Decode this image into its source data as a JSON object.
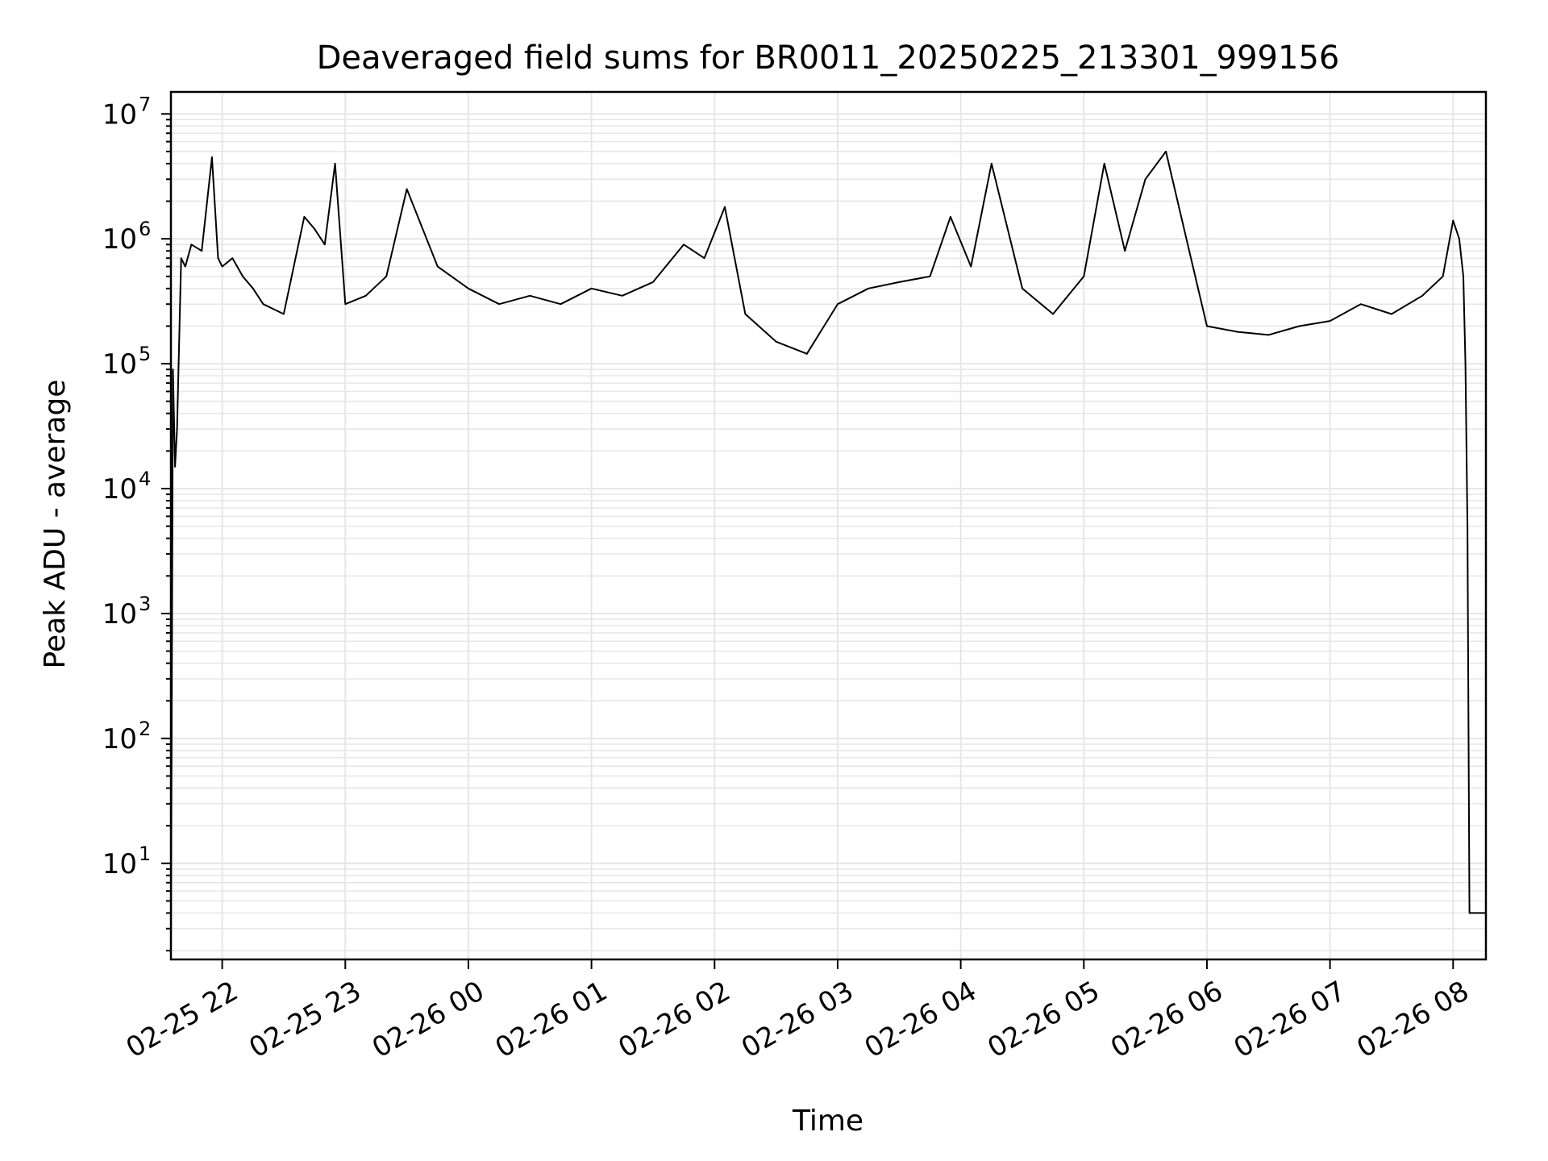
{
  "chart_data": {
    "type": "line",
    "title": "Deaveraged field sums for BR0011_20250225_213301_999156",
    "xlabel": "Time",
    "ylabel": "Peak ADU - average",
    "yscale": "log",
    "ylim": [
      1.7,
      15000000
    ],
    "xlim": [
      "02-25 21:35",
      "02-26 08:16"
    ],
    "grid": true,
    "line_color": "#000000",
    "x_ticks": [
      "02-25 22",
      "02-25 23",
      "02-26 00",
      "02-26 01",
      "02-26 02",
      "02-26 03",
      "02-26 04",
      "02-26 05",
      "02-26 06",
      "02-26 07",
      "02-26 08"
    ],
    "y_ticks": [
      {
        "base": "10",
        "exp": "1"
      },
      {
        "base": "10",
        "exp": "2"
      },
      {
        "base": "10",
        "exp": "3"
      },
      {
        "base": "10",
        "exp": "4"
      },
      {
        "base": "10",
        "exp": "5"
      },
      {
        "base": "10",
        "exp": "6"
      },
      {
        "base": "10",
        "exp": "7"
      }
    ],
    "series": [
      {
        "x": [
          "02-25 21:35",
          "02-25 21:36",
          "02-25 21:37",
          "02-25 21:38",
          "02-25 21:40",
          "02-25 21:42",
          "02-25 21:45",
          "02-25 21:50",
          "02-25 21:55",
          "02-25 21:58",
          "02-25 22:00",
          "02-25 22:05",
          "02-25 22:10",
          "02-25 22:15",
          "02-25 22:20",
          "02-25 22:30",
          "02-25 22:40",
          "02-25 22:45",
          "02-25 22:50",
          "02-25 22:55",
          "02-25 23:00",
          "02-25 23:10",
          "02-25 23:20",
          "02-25 23:30",
          "02-25 23:45",
          "02-26 00:00",
          "02-26 00:15",
          "02-26 00:30",
          "02-26 00:45",
          "02-26 01:00",
          "02-26 01:15",
          "02-26 01:30",
          "02-26 01:45",
          "02-26 01:55",
          "02-26 02:05",
          "02-26 02:15",
          "02-26 02:30",
          "02-26 02:45",
          "02-26 03:00",
          "02-26 03:15",
          "02-26 03:30",
          "02-26 03:45",
          "02-26 03:55",
          "02-26 04:05",
          "02-26 04:15",
          "02-26 04:30",
          "02-26 04:45",
          "02-26 05:00",
          "02-26 05:10",
          "02-26 05:20",
          "02-26 05:30",
          "02-26 05:40",
          "02-26 05:50",
          "02-26 06:00",
          "02-26 06:15",
          "02-26 06:30",
          "02-26 06:45",
          "02-26 07:00",
          "02-26 07:15",
          "02-26 07:30",
          "02-26 07:45",
          "02-26 07:55",
          "02-26 08:00",
          "02-26 08:03",
          "02-26 08:05",
          "02-26 08:06",
          "02-26 08:07",
          "02-26 08:08",
          "02-26 08:10",
          "02-26 08:16"
        ],
        "y": [
          2,
          90000,
          15000,
          30000,
          700000,
          600000,
          900000,
          800000,
          4500000,
          700000,
          600000,
          700000,
          500000,
          400000,
          300000,
          250000,
          1500000,
          1200000,
          900000,
          4000000,
          300000,
          350000,
          500000,
          2500000,
          600000,
          400000,
          300000,
          350000,
          300000,
          400000,
          350000,
          450000,
          900000,
          700000,
          1800000,
          250000,
          150000,
          120000,
          300000,
          400000,
          450000,
          500000,
          1500000,
          600000,
          4000000,
          400000,
          250000,
          500000,
          4000000,
          800000,
          3000000,
          5000000,
          1000000,
          200000,
          180000,
          170000,
          200000,
          220000,
          300000,
          250000,
          350000,
          500000,
          1400000,
          1000000,
          500000,
          100000,
          5000,
          4,
          4,
          4
        ]
      }
    ]
  }
}
